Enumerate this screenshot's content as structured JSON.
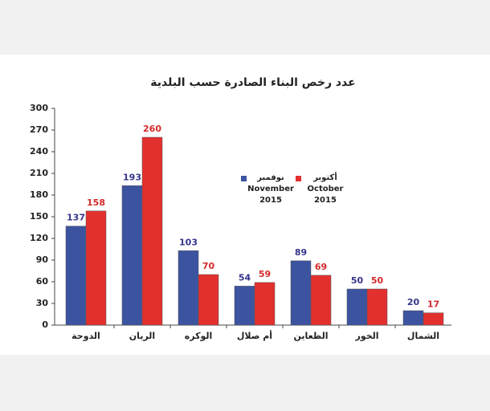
{
  "chart_data": {
    "type": "bar",
    "title": "عدد رخص البناء الصادرة حسب البلدية",
    "categories": [
      "الدوحة",
      "الريان",
      "الوكره",
      "أم صلال",
      "الظعاين",
      "الخور",
      "الشمال"
    ],
    "series": [
      {
        "name": "نوفمبر November 2015",
        "color": "#3c54a0",
        "label_color": "#33348a",
        "values": [
          137,
          193,
          103,
          54,
          89,
          50,
          20
        ]
      },
      {
        "name": "أكتوبر October 2015",
        "color": "#e2302f",
        "label_color": "#d42a2a",
        "values": [
          158,
          260,
          70,
          59,
          69,
          50,
          17
        ]
      }
    ],
    "ylim": [
      0,
      300
    ],
    "yticks": [
      0,
      30,
      60,
      90,
      120,
      150,
      180,
      210,
      240,
      270,
      300
    ],
    "grid": false
  }
}
